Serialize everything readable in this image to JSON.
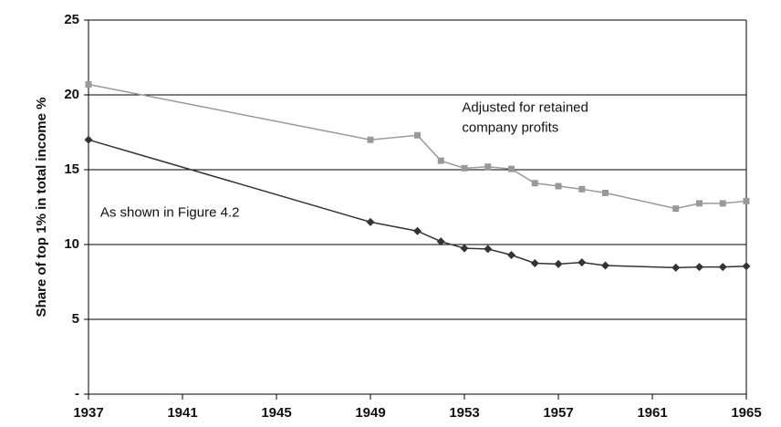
{
  "chart_data": {
    "type": "line",
    "y_label": "Share of top 1% in total income %",
    "x": [
      1937,
      1949,
      1951,
      1952,
      1953,
      1954,
      1955,
      1956,
      1957,
      1958,
      1959,
      1962,
      1963,
      1964,
      1965
    ],
    "series": [
      {
        "color": "#999999",
        "marker": "square",
        "values": [
          20.7,
          17.0,
          17.3,
          15.6,
          15.1,
          15.2,
          15.05,
          14.1,
          13.9,
          13.7,
          13.45,
          12.4,
          12.75,
          12.75,
          12.9
        ]
      },
      {
        "color": "#333333",
        "marker": "diamond",
        "values": [
          17.0,
          11.5,
          10.9,
          10.2,
          9.75,
          9.7,
          9.3,
          8.75,
          8.7,
          8.8,
          8.6,
          8.45,
          8.5,
          8.5,
          8.55
        ]
      }
    ],
    "annotations": [
      {
        "lines": [
          "Adjusted for retained",
          "company profits"
        ],
        "x": 1952.9,
        "y": 19.1
      },
      {
        "lines": [
          "As shown in Figure 4.2"
        ],
        "x": 1937.5,
        "y": 12.1
      }
    ],
    "xlim": [
      1937,
      1965
    ],
    "xticks": [
      1937,
      1941,
      1945,
      1949,
      1953,
      1957,
      1961,
      1965
    ],
    "ylim": [
      0,
      25
    ],
    "yticks": [
      {
        "value": 0,
        "label": "-"
      },
      5,
      10,
      15,
      20,
      25
    ],
    "grid": true
  }
}
